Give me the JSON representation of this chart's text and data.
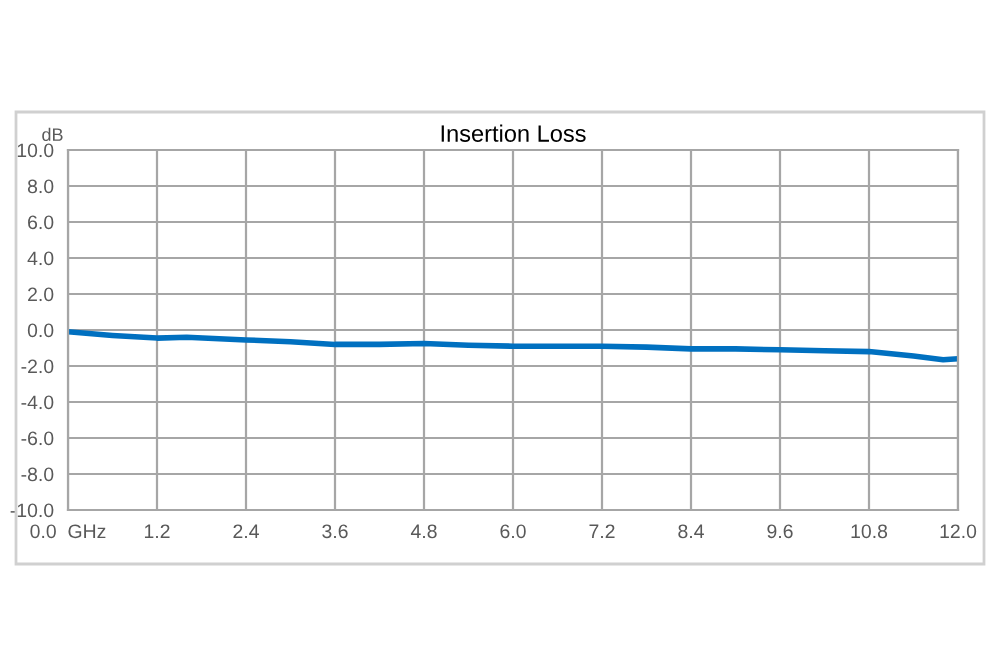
{
  "chart_data": {
    "type": "line",
    "title": "Insertion Loss",
    "ylabel": "dB",
    "x": [
      0,
      0.6,
      1.2,
      1.6,
      2.4,
      3.0,
      3.6,
      4.2,
      4.8,
      5.4,
      6.0,
      7.2,
      7.8,
      8.4,
      9.0,
      9.6,
      10.2,
      10.8,
      11.4,
      11.8,
      12.0
    ],
    "series": [
      {
        "color": "#0070c0",
        "values": [
          -0.1,
          -0.3,
          -0.45,
          -0.4,
          -0.55,
          -0.65,
          -0.8,
          -0.8,
          -0.75,
          -0.85,
          -0.9,
          -0.9,
          -0.95,
          -1.05,
          -1.05,
          -1.1,
          -1.15,
          -1.2,
          -1.45,
          -1.65,
          -1.6
        ]
      }
    ],
    "xlim": [
      0,
      12
    ],
    "xticks": [
      {
        "value": 0,
        "label": "0.0  GHz"
      },
      {
        "value": 1.2,
        "label": "1.2"
      },
      {
        "value": 2.4,
        "label": "2.4"
      },
      {
        "value": 3.6,
        "label": "3.6"
      },
      {
        "value": 4.8,
        "label": "4.8"
      },
      {
        "value": 6.0,
        "label": "6.0"
      },
      {
        "value": 7.2,
        "label": "7.2"
      },
      {
        "value": 8.4,
        "label": "8.4"
      },
      {
        "value": 9.6,
        "label": "9.6"
      },
      {
        "value": 10.8,
        "label": "10.8"
      },
      {
        "value": 12.0,
        "label": "12.0"
      }
    ],
    "ylim": [
      -10,
      10
    ],
    "yticks": [
      {
        "value": -10,
        "label": "-10.0"
      },
      {
        "value": -8,
        "label": "-8.0"
      },
      {
        "value": -6,
        "label": "-6.0"
      },
      {
        "value": -4,
        "label": "-4.0"
      },
      {
        "value": -2,
        "label": "-2.0"
      },
      {
        "value": 0,
        "label": "0.0"
      },
      {
        "value": 2,
        "label": "2.0"
      },
      {
        "value": 4,
        "label": "4.0"
      },
      {
        "value": 6,
        "label": "6.0"
      },
      {
        "value": 8,
        "label": "8.0"
      },
      {
        "value": 10,
        "label": "10.0"
      }
    ],
    "grid": true,
    "legend": false,
    "marker": "none",
    "line_style": "solid"
  }
}
